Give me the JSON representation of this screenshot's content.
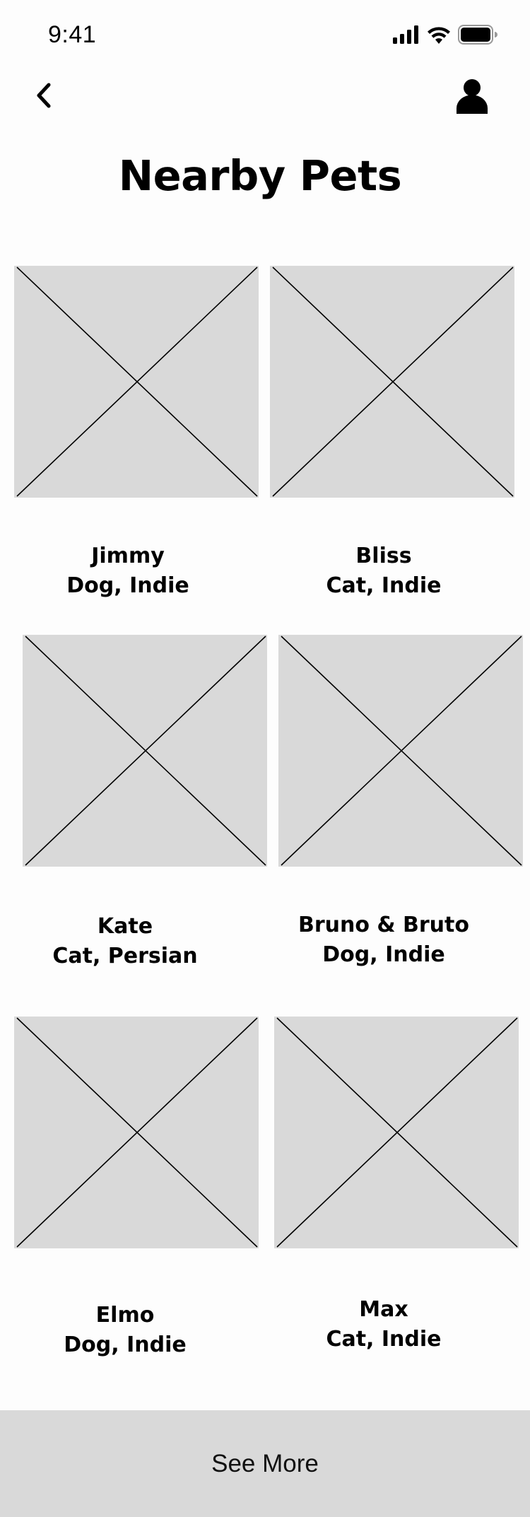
{
  "status_bar": {
    "time": "9:41",
    "icons": [
      "cellular-signal-icon",
      "wifi-icon",
      "battery-icon"
    ]
  },
  "nav": {
    "back_icon": "chevron-left-icon",
    "profile_icon": "user-icon"
  },
  "page_title": "Nearby Pets",
  "pets": [
    {
      "name": "Jimmy",
      "description": "Dog, Indie"
    },
    {
      "name": "Bliss",
      "description": "Cat, Indie"
    },
    {
      "name": "Kate",
      "description": "Cat, Persian"
    },
    {
      "name": "Bruno & Bruto",
      "description": "Dog, Indie"
    },
    {
      "name": "Elmo",
      "description": "Dog, Indie"
    },
    {
      "name": "Max",
      "description": "Cat, Indie"
    }
  ],
  "see_more_label": "See More",
  "colors": {
    "placeholder": "#d9d9d9",
    "background": "#fdfdfd",
    "text": "#000000"
  }
}
